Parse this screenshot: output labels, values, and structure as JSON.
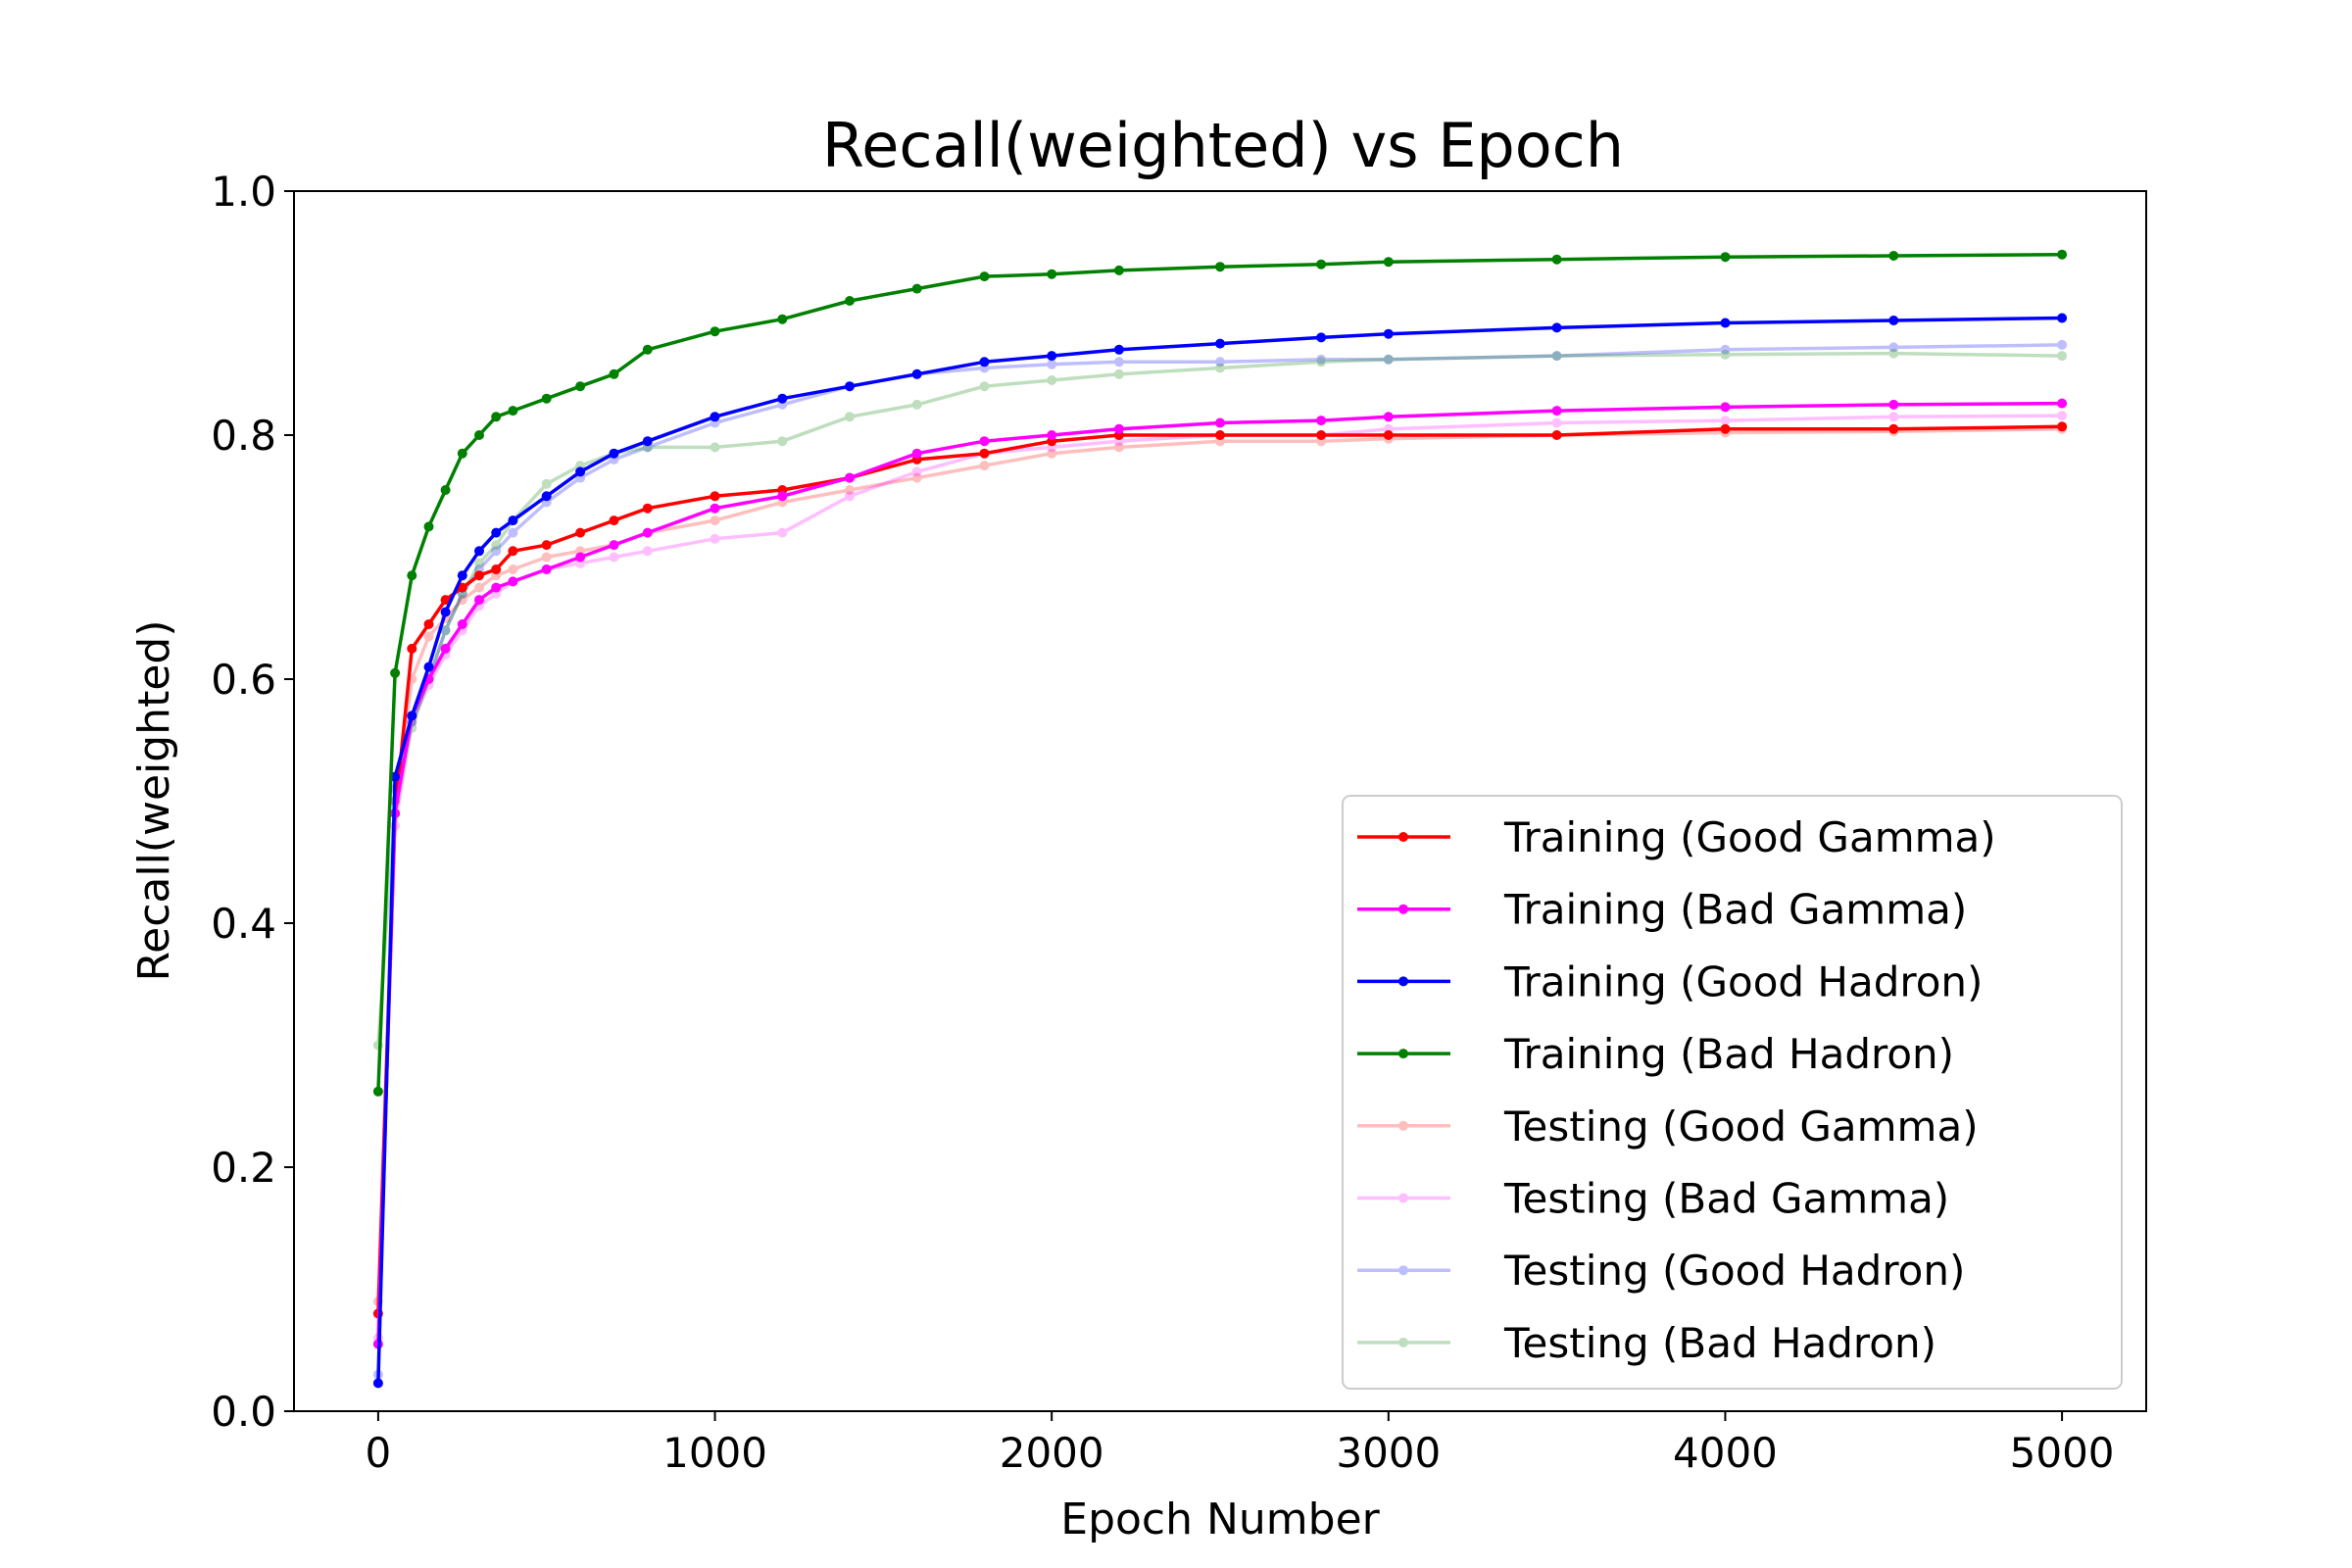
{
  "chart_data": {
    "type": "line",
    "title": "Recall(weighted) vs Epoch",
    "xlabel": "Epoch Number",
    "ylabel": "Recall(weighted)",
    "xlim": [
      -250,
      5250
    ],
    "ylim": [
      0.0,
      1.0
    ],
    "xticks": [
      0,
      1000,
      2000,
      3000,
      4000,
      5000
    ],
    "xtick_labels": [
      "0",
      "1000",
      "2000",
      "3000",
      "4000",
      "5000"
    ],
    "yticks": [
      0.0,
      0.2,
      0.4,
      0.6,
      0.8,
      1.0
    ],
    "ytick_labels": [
      "0.0",
      "0.2",
      "0.4",
      "0.6",
      "0.8",
      "1.0"
    ],
    "grid": false,
    "legend_position": "lower-right",
    "x": [
      0,
      50,
      100,
      150,
      200,
      250,
      300,
      350,
      400,
      500,
      600,
      700,
      800,
      1000,
      1200,
      1400,
      1600,
      1800,
      2000,
      2200,
      2500,
      2800,
      3000,
      3500,
      4000,
      4500,
      5000
    ],
    "series": [
      {
        "name": "Training (Good Gamma)",
        "color": "#ff0000",
        "alpha": 1.0,
        "values": [
          0.08,
          0.49,
          0.625,
          0.645,
          0.665,
          0.675,
          0.685,
          0.69,
          0.705,
          0.71,
          0.72,
          0.73,
          0.74,
          0.75,
          0.755,
          0.765,
          0.78,
          0.785,
          0.795,
          0.8,
          0.8,
          0.8,
          0.8,
          0.8,
          0.805,
          0.805,
          0.807
        ]
      },
      {
        "name": "Training (Bad Gamma)",
        "color": "#ff00ff",
        "alpha": 1.0,
        "values": [
          0.055,
          0.49,
          0.57,
          0.6,
          0.625,
          0.645,
          0.665,
          0.675,
          0.68,
          0.69,
          0.7,
          0.71,
          0.72,
          0.74,
          0.75,
          0.765,
          0.785,
          0.795,
          0.8,
          0.805,
          0.81,
          0.812,
          0.815,
          0.82,
          0.823,
          0.825,
          0.826
        ]
      },
      {
        "name": "Training (Good Hadron)",
        "color": "#0000ff",
        "alpha": 1.0,
        "values": [
          0.023,
          0.52,
          0.57,
          0.61,
          0.655,
          0.685,
          0.705,
          0.72,
          0.73,
          0.75,
          0.77,
          0.785,
          0.795,
          0.815,
          0.83,
          0.84,
          0.85,
          0.86,
          0.865,
          0.87,
          0.875,
          0.88,
          0.883,
          0.888,
          0.892,
          0.894,
          0.896
        ]
      },
      {
        "name": "Training (Bad Hadron)",
        "color": "#008000",
        "alpha": 1.0,
        "values": [
          0.262,
          0.605,
          0.685,
          0.725,
          0.755,
          0.785,
          0.8,
          0.815,
          0.82,
          0.83,
          0.84,
          0.85,
          0.87,
          0.885,
          0.895,
          0.91,
          0.92,
          0.93,
          0.932,
          0.935,
          0.938,
          0.94,
          0.942,
          0.944,
          0.946,
          0.947,
          0.948
        ]
      },
      {
        "name": "Testing (Good Gamma)",
        "color": "#ff0000",
        "alpha": 0.25,
        "values": [
          0.09,
          0.5,
          0.6,
          0.635,
          0.65,
          0.665,
          0.675,
          0.685,
          0.69,
          0.7,
          0.705,
          0.71,
          0.72,
          0.73,
          0.745,
          0.755,
          0.765,
          0.775,
          0.785,
          0.79,
          0.795,
          0.795,
          0.797,
          0.8,
          0.802,
          0.803,
          0.805
        ]
      },
      {
        "name": "Testing (Bad Gamma)",
        "color": "#ff00ff",
        "alpha": 0.25,
        "values": [
          0.06,
          0.48,
          0.565,
          0.595,
          0.62,
          0.64,
          0.66,
          0.67,
          0.68,
          0.69,
          0.695,
          0.7,
          0.705,
          0.715,
          0.72,
          0.75,
          0.77,
          0.785,
          0.79,
          0.795,
          0.8,
          0.8,
          0.805,
          0.81,
          0.812,
          0.815,
          0.816
        ]
      },
      {
        "name": "Testing (Good Hadron)",
        "color": "#0000ff",
        "alpha": 0.25,
        "values": [
          0.03,
          0.51,
          0.565,
          0.6,
          0.64,
          0.67,
          0.69,
          0.705,
          0.72,
          0.745,
          0.765,
          0.78,
          0.79,
          0.81,
          0.825,
          0.84,
          0.85,
          0.855,
          0.858,
          0.86,
          0.86,
          0.862,
          0.862,
          0.865,
          0.87,
          0.872,
          0.874
        ]
      },
      {
        "name": "Testing (Bad Hadron)",
        "color": "#008000",
        "alpha": 0.25,
        "values": [
          0.3,
          0.5,
          0.56,
          0.6,
          0.64,
          0.67,
          0.695,
          0.71,
          0.73,
          0.76,
          0.775,
          0.785,
          0.79,
          0.79,
          0.795,
          0.815,
          0.825,
          0.84,
          0.845,
          0.85,
          0.855,
          0.86,
          0.862,
          0.865,
          0.866,
          0.867,
          0.865
        ]
      }
    ]
  }
}
